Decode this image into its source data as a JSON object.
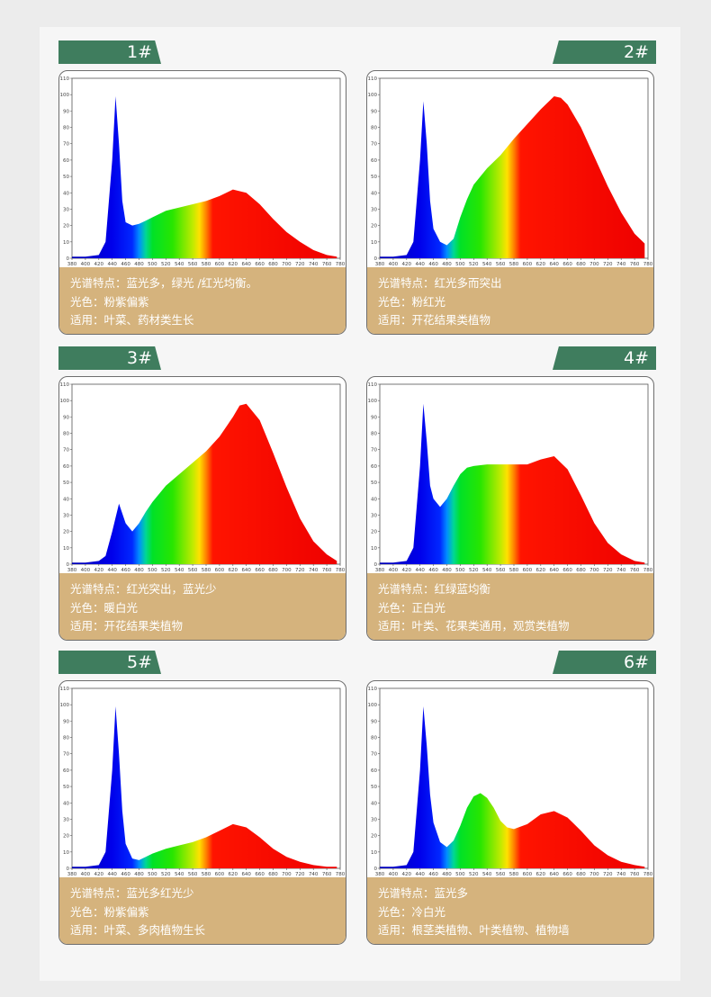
{
  "cards": [
    {
      "tab": "1#",
      "line1": "光谱特点：蓝光多，绿光 /红光均衡。",
      "line2": "光色：粉紫偏紫",
      "line3": "适用：叶菜、药材类生长"
    },
    {
      "tab": "2#",
      "line1": "光谱特点：红光多而突出",
      "line2": "光色：粉红光",
      "line3": "适用：开花结果类植物"
    },
    {
      "tab": "3#",
      "line1": "光谱特点：红光突出，蓝光少",
      "line2": "光色：暖白光",
      "line3": "适用：开花结果类植物"
    },
    {
      "tab": "4#",
      "line1": "光谱特点：红绿蓝均衡",
      "line2": "光色：正白光",
      "line3": "适用：叶类、花果类通用，观赏类植物"
    },
    {
      "tab": "5#",
      "line1": "光谱特点：蓝光多红光少",
      "line2": "光色：粉紫偏紫",
      "line3": "适用：叶菜、多肉植物生长"
    },
    {
      "tab": "6#",
      "line1": "光谱特点：蓝光多",
      "line2": "光色：冷白光",
      "line3": "适用：根茎类植物、叶类植物、植物墙"
    }
  ],
  "chart_data": [
    {
      "type": "area",
      "xlim": [
        380,
        780
      ],
      "ylim": [
        0,
        110
      ],
      "xticks": [
        "380",
        "400",
        "420",
        "440",
        "460",
        "480",
        "500",
        "520",
        "540",
        "560",
        "580",
        "600",
        "620",
        "640",
        "660",
        "680",
        "700",
        "720",
        "740",
        "760",
        "780"
      ],
      "yticks": [
        "0",
        "10",
        "20",
        "30",
        "40",
        "50",
        "60",
        "70",
        "80",
        "90",
        "100",
        "110"
      ],
      "x": [
        380,
        400,
        420,
        430,
        440,
        445,
        450,
        455,
        460,
        470,
        480,
        490,
        500,
        520,
        540,
        560,
        580,
        600,
        620,
        640,
        660,
        680,
        700,
        720,
        740,
        760,
        775
      ],
      "y": [
        1,
        1,
        2,
        10,
        60,
        99,
        70,
        35,
        22,
        20,
        21,
        23,
        25,
        29,
        31,
        33,
        35,
        38,
        42,
        40,
        33,
        24,
        16,
        10,
        5,
        2,
        1
      ]
    },
    {
      "type": "area",
      "xlim": [
        380,
        780
      ],
      "ylim": [
        0,
        110
      ],
      "xticks": [
        "380",
        "400",
        "420",
        "440",
        "460",
        "480",
        "500",
        "520",
        "540",
        "560",
        "580",
        "600",
        "620",
        "640",
        "660",
        "680",
        "700",
        "720",
        "740",
        "760",
        "780"
      ],
      "yticks": [
        "0",
        "10",
        "20",
        "30",
        "40",
        "50",
        "60",
        "70",
        "80",
        "90",
        "100",
        "110"
      ],
      "x": [
        380,
        400,
        420,
        430,
        440,
        445,
        450,
        455,
        460,
        470,
        480,
        490,
        500,
        510,
        520,
        540,
        560,
        580,
        600,
        620,
        640,
        650,
        660,
        680,
        700,
        720,
        740,
        760,
        775
      ],
      "y": [
        1,
        1,
        2,
        10,
        60,
        96,
        70,
        35,
        18,
        10,
        8,
        12,
        25,
        36,
        45,
        55,
        63,
        73,
        82,
        91,
        99,
        98,
        94,
        80,
        62,
        44,
        28,
        15,
        9
      ]
    },
    {
      "type": "area",
      "xlim": [
        380,
        780
      ],
      "ylim": [
        0,
        110
      ],
      "xticks": [
        "380",
        "400",
        "420",
        "440",
        "460",
        "480",
        "500",
        "520",
        "540",
        "560",
        "580",
        "600",
        "620",
        "640",
        "660",
        "680",
        "700",
        "720",
        "740",
        "760",
        "780"
      ],
      "yticks": [
        "0",
        "10",
        "20",
        "30",
        "40",
        "50",
        "60",
        "70",
        "80",
        "90",
        "100",
        "110"
      ],
      "x": [
        380,
        400,
        420,
        430,
        440,
        450,
        460,
        470,
        480,
        490,
        500,
        520,
        540,
        560,
        580,
        600,
        620,
        630,
        640,
        660,
        680,
        700,
        720,
        740,
        760,
        775
      ],
      "y": [
        1,
        1,
        2,
        5,
        20,
        37,
        25,
        20,
        25,
        32,
        38,
        48,
        55,
        62,
        69,
        78,
        90,
        97,
        98,
        88,
        68,
        47,
        28,
        14,
        6,
        2
      ]
    },
    {
      "type": "area",
      "xlim": [
        380,
        780
      ],
      "ylim": [
        0,
        110
      ],
      "xticks": [
        "380",
        "400",
        "420",
        "440",
        "460",
        "480",
        "500",
        "520",
        "540",
        "560",
        "580",
        "600",
        "620",
        "640",
        "660",
        "680",
        "700",
        "720",
        "740",
        "760",
        "780"
      ],
      "yticks": [
        "0",
        "10",
        "20",
        "30",
        "40",
        "50",
        "60",
        "70",
        "80",
        "90",
        "100",
        "110"
      ],
      "x": [
        380,
        400,
        420,
        430,
        440,
        445,
        450,
        455,
        460,
        470,
        480,
        490,
        500,
        510,
        520,
        540,
        560,
        580,
        600,
        620,
        640,
        660,
        680,
        700,
        720,
        740,
        760,
        775
      ],
      "y": [
        1,
        1,
        2,
        10,
        60,
        98,
        75,
        48,
        40,
        35,
        40,
        48,
        55,
        59,
        60,
        61,
        61,
        61,
        61,
        64,
        66,
        58,
        42,
        25,
        13,
        6,
        2,
        1
      ]
    },
    {
      "type": "area",
      "xlim": [
        380,
        780
      ],
      "ylim": [
        0,
        110
      ],
      "xticks": [
        "380",
        "400",
        "420",
        "440",
        "460",
        "480",
        "500",
        "520",
        "540",
        "560",
        "580",
        "600",
        "620",
        "640",
        "660",
        "680",
        "700",
        "720",
        "740",
        "760",
        "780"
      ],
      "yticks": [
        "0",
        "10",
        "20",
        "30",
        "40",
        "50",
        "60",
        "70",
        "80",
        "90",
        "100",
        "110"
      ],
      "x": [
        380,
        400,
        420,
        430,
        440,
        445,
        450,
        455,
        460,
        470,
        480,
        490,
        500,
        520,
        540,
        560,
        580,
        600,
        620,
        640,
        660,
        680,
        700,
        720,
        740,
        760,
        775
      ],
      "y": [
        1,
        1,
        2,
        10,
        60,
        99,
        70,
        35,
        15,
        6,
        5,
        7,
        9,
        12,
        14,
        16,
        19,
        23,
        27,
        25,
        19,
        12,
        7,
        4,
        2,
        1,
        1
      ]
    },
    {
      "type": "area",
      "xlim": [
        380,
        780
      ],
      "ylim": [
        0,
        110
      ],
      "xticks": [
        "380",
        "400",
        "420",
        "440",
        "460",
        "480",
        "500",
        "520",
        "540",
        "560",
        "580",
        "600",
        "620",
        "640",
        "660",
        "680",
        "700",
        "720",
        "740",
        "760",
        "780"
      ],
      "yticks": [
        "0",
        "10",
        "20",
        "30",
        "40",
        "50",
        "60",
        "70",
        "80",
        "90",
        "100",
        "110"
      ],
      "x": [
        380,
        400,
        420,
        430,
        440,
        445,
        450,
        455,
        460,
        470,
        480,
        490,
        500,
        510,
        520,
        530,
        540,
        550,
        560,
        570,
        580,
        600,
        620,
        640,
        660,
        680,
        700,
        720,
        740,
        760,
        775
      ],
      "y": [
        1,
        1,
        2,
        10,
        60,
        99,
        75,
        45,
        28,
        16,
        13,
        17,
        26,
        37,
        44,
        46,
        43,
        37,
        29,
        25,
        24,
        27,
        33,
        35,
        31,
        23,
        14,
        8,
        4,
        2,
        1
      ]
    }
  ]
}
